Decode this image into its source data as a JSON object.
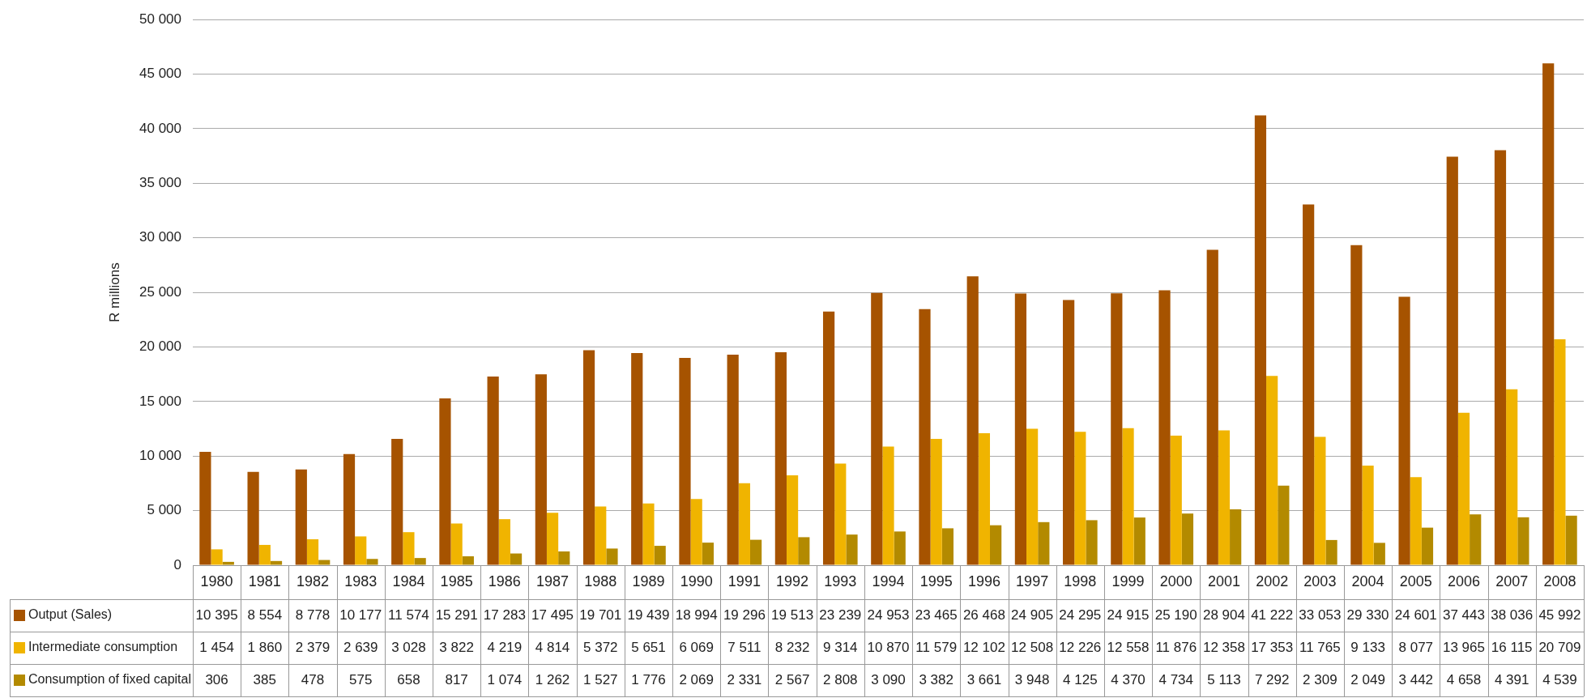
{
  "chart_data": {
    "type": "bar",
    "ylabel": "R millions",
    "categories": [
      "1980",
      "1981",
      "1982",
      "1983",
      "1984",
      "1985",
      "1986",
      "1987",
      "1988",
      "1989",
      "1990",
      "1991",
      "1992",
      "1993",
      "1994",
      "1995",
      "1996",
      "1997",
      "1998",
      "1999",
      "2000",
      "2001",
      "2002",
      "2003",
      "2004",
      "2005",
      "2006",
      "2007",
      "2008"
    ],
    "series": [
      {
        "name": "Output (Sales)",
        "color": "#a65300",
        "values": [
          10395,
          8554,
          8778,
          10177,
          11574,
          15291,
          17283,
          17495,
          19701,
          19439,
          18994,
          19296,
          19513,
          23239,
          24953,
          23465,
          26468,
          24905,
          24295,
          24915,
          25190,
          28904,
          41222,
          33053,
          29330,
          24601,
          37443,
          38036,
          45992
        ]
      },
      {
        "name": "Intermediate consumption",
        "color": "#f0b400",
        "values": [
          1454,
          1860,
          2379,
          2639,
          3028,
          3822,
          4219,
          4814,
          5372,
          5651,
          6069,
          7511,
          8232,
          9314,
          10870,
          11579,
          12102,
          12508,
          12226,
          12558,
          11876,
          12358,
          17353,
          11765,
          9133,
          8077,
          13965,
          16115,
          20709
        ]
      },
      {
        "name": "Consumption of fixed capital",
        "color": "#b38a00",
        "values": [
          306,
          385,
          478,
          575,
          658,
          817,
          1074,
          1262,
          1527,
          1776,
          2069,
          2331,
          2567,
          2808,
          3090,
          3382,
          3661,
          3948,
          4125,
          4370,
          4734,
          5113,
          7292,
          2309,
          2049,
          3442,
          4658,
          4391,
          4539
        ]
      }
    ],
    "ylim": [
      0,
      50000
    ],
    "yticks": [
      0,
      {
        "value": 5000,
        "label": "5 000"
      },
      {
        "value": 10000,
        "label": "10 000"
      },
      {
        "value": 15000,
        "label": "15 000"
      },
      {
        "value": 20000,
        "label": "20 000"
      },
      {
        "value": 25000,
        "label": "25 000"
      },
      {
        "value": 30000,
        "label": "30 000"
      },
      {
        "value": 35000,
        "label": "35 000"
      },
      {
        "value": 40000,
        "label": "40 000"
      },
      {
        "value": 45000,
        "label": "45 000"
      },
      {
        "value": 50000,
        "label": "50 000"
      }
    ],
    "grid": "y",
    "legend": "bottom left",
    "data_labels": true
  }
}
